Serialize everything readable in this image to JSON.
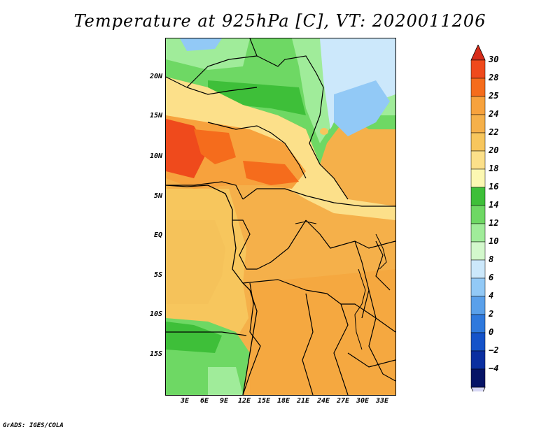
{
  "title": "Temperature at 925hPa [C], VT: 2020011206",
  "footer": "GrADS: IGES/COLA",
  "lat_labels": [
    "20N",
    "15N",
    "10N",
    "5N",
    "EQ",
    "5S",
    "10S",
    "15S"
  ],
  "lon_labels": [
    "3E",
    "6E",
    "9E",
    "12E",
    "15E",
    "18E",
    "21E",
    "24E",
    "27E",
    "30E",
    "33E"
  ],
  "colorbar": {
    "labels": [
      "30",
      "28",
      "25",
      "24",
      "22",
      "20",
      "18",
      "16",
      "14",
      "12",
      "10",
      "8",
      "6",
      "4",
      "2",
      "0",
      "−2",
      "−4"
    ],
    "colors": [
      "#d72c1a",
      "#ef4a1c",
      "#f56c1c",
      "#f7a23d",
      "#f5b04a",
      "#f7c65d",
      "#fce08a",
      "#fcf8b2",
      "#3ebf39",
      "#6ed864",
      "#a0ec9a",
      "#d3f8cc",
      "#cce8fb",
      "#92c9f6",
      "#5aa0ea",
      "#2f79dd",
      "#1553c9",
      "#0a2fa0",
      "#061466"
    ],
    "top_triangle_color": "#d72c1a",
    "bottom_triangle_color": "#d8d8f5"
  }
}
